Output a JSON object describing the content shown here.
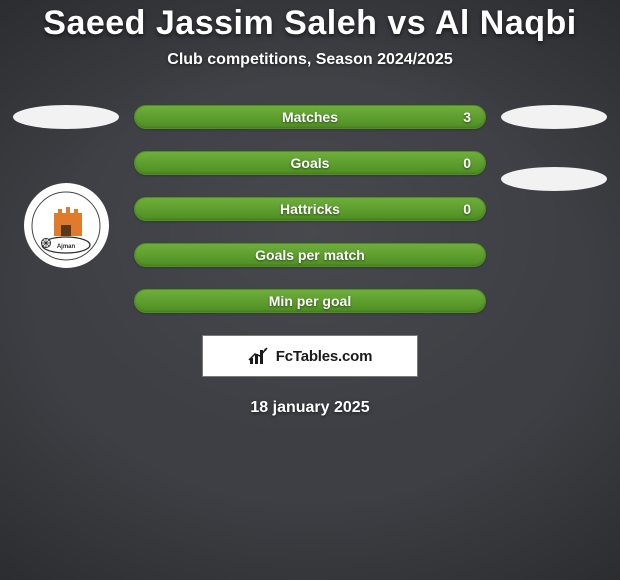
{
  "background": {
    "color": "#3e3f44",
    "vignette_inner": "rgba(255,255,255,0.05)",
    "vignette_outer": "rgba(0,0,0,0.55)"
  },
  "title": {
    "text": "Saeed Jassim Saleh vs Al Naqbi",
    "color": "#ffffff",
    "fontsize": 34,
    "weight": 800
  },
  "subtitle": {
    "text": "Club competitions, Season 2024/2025",
    "color": "#ffffff",
    "fontsize": 16,
    "weight": 600
  },
  "placeholder_ellipse": {
    "fill": "#f2f2f2",
    "width": 106,
    "height": 24
  },
  "club_badge": {
    "bg": "#ffffff",
    "diameter": 85,
    "tower_color": "#e07b2e",
    "text_color": "#2a2a2a"
  },
  "stats": {
    "pill_fill": "#6fae3c",
    "pill_border": "#4e8f22",
    "label_color": "#ffffff",
    "value_color": "#ffffff",
    "rows": [
      {
        "label": "Matches",
        "left": "",
        "right": "3"
      },
      {
        "label": "Goals",
        "left": "",
        "right": "0"
      },
      {
        "label": "Hattricks",
        "left": "",
        "right": "0"
      },
      {
        "label": "Goals per match",
        "left": "",
        "right": ""
      },
      {
        "label": "Min per goal",
        "left": "",
        "right": ""
      }
    ]
  },
  "brand": {
    "text": "FcTables.com",
    "text_color": "#1a1a1a",
    "box_bg": "#ffffff",
    "box_border": "#7a7a7a",
    "icon_color": "#1a1a1a"
  },
  "date": {
    "text": "18 january 2025",
    "color": "#ffffff",
    "fontsize": 16,
    "weight": 700
  }
}
